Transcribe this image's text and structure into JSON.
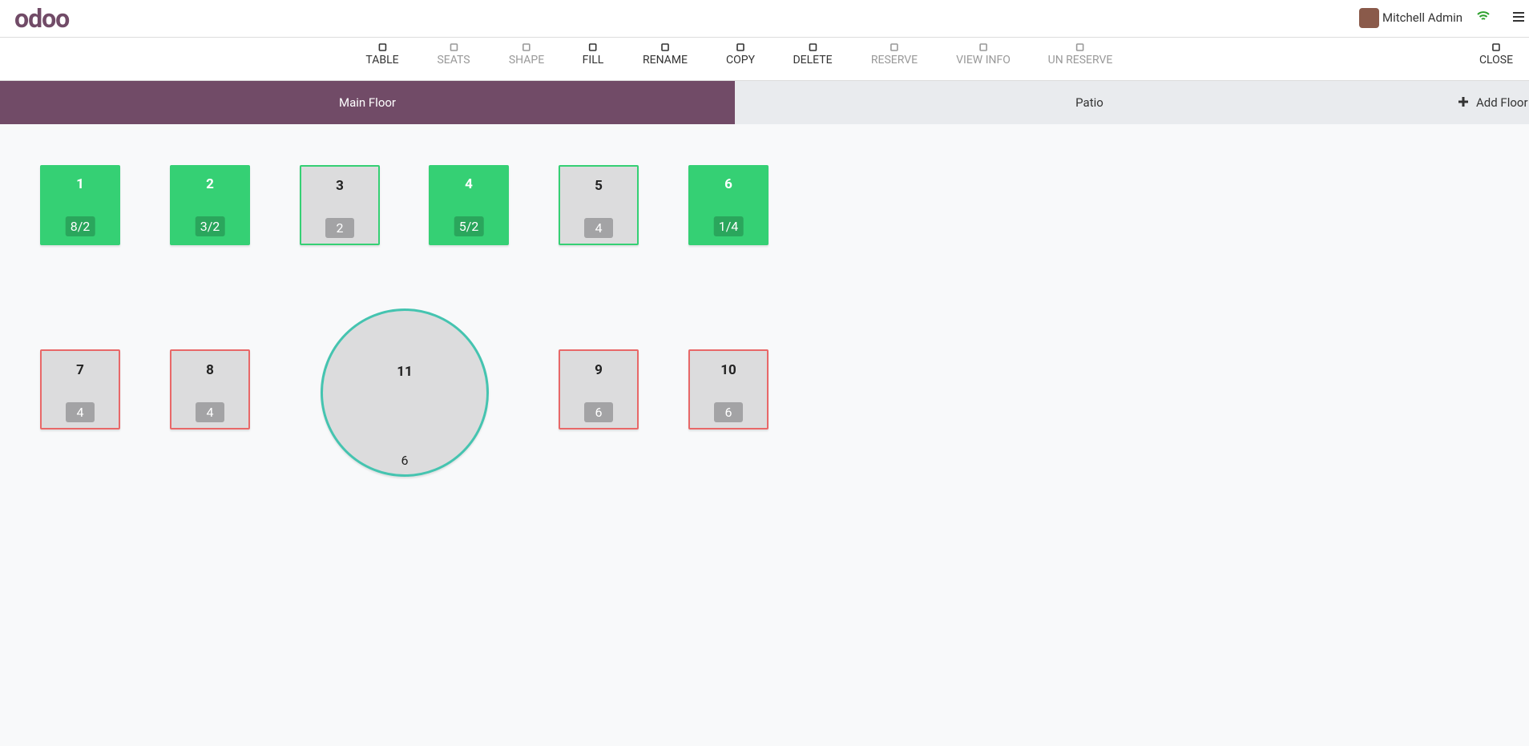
{
  "header": {
    "brand": "odoo",
    "user": "Mitchell Admin"
  },
  "toolbar": [
    "TABLE",
    "SEATS",
    "SHAPE",
    "FILL",
    "RENAME",
    "COPY",
    "DELETE",
    "RESERVE",
    "VIEW INFO",
    "UN RESERVE",
    "CLOSE"
  ],
  "floors": [
    "Main Floor",
    "Patio"
  ],
  "add_floor": "Add Floor",
  "tables": [
    {
      "name": "1",
      "seats": "8/2"
    },
    {
      "name": "2",
      "seats": "3/2"
    },
    {
      "name": "3",
      "seats": "2"
    },
    {
      "name": "4",
      "seats": "5/2"
    },
    {
      "name": "5",
      "seats": "4"
    },
    {
      "name": "6",
      "seats": "1/4"
    },
    {
      "name": "7",
      "seats": "4"
    },
    {
      "name": "8",
      "seats": "4"
    },
    {
      "name": "11",
      "seats": "6"
    },
    {
      "name": "9",
      "seats": "6"
    },
    {
      "name": "10",
      "seats": "6"
    }
  ]
}
